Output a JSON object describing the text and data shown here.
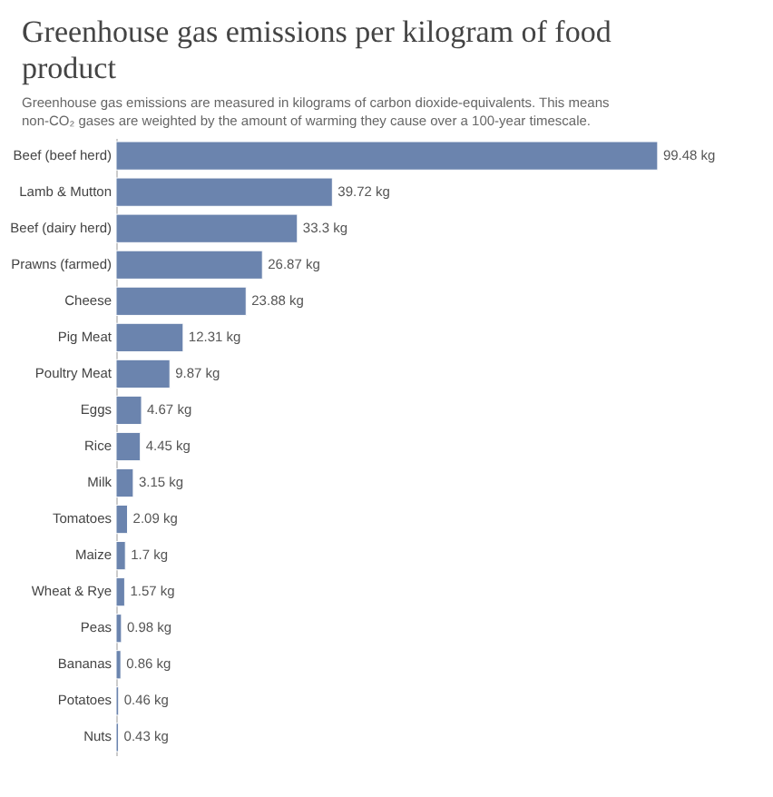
{
  "chart_data": {
    "type": "bar",
    "orientation": "horizontal",
    "title": "Greenhouse gas emissions per kilogram of food product",
    "subtitle": "Greenhouse gas emissions are measured in kilograms of carbon dioxide-equivalents. This means non-CO₂ gases are weighted by the amount of warming they cause over a 100-year timescale.",
    "categories": [
      "Beef (beef herd)",
      "Lamb & Mutton",
      "Beef (dairy herd)",
      "Prawns (farmed)",
      "Cheese",
      "Pig Meat",
      "Poultry Meat",
      "Eggs",
      "Rice",
      "Milk",
      "Tomatoes",
      "Maize",
      "Wheat & Rye",
      "Peas",
      "Bananas",
      "Potatoes",
      "Nuts"
    ],
    "values": [
      99.48,
      39.72,
      33.3,
      26.87,
      23.88,
      12.31,
      9.87,
      4.67,
      4.45,
      3.15,
      2.09,
      1.7,
      1.57,
      0.98,
      0.86,
      0.46,
      0.43
    ],
    "value_labels": [
      "99.48 kg",
      "39.72 kg",
      "33.3 kg",
      "26.87 kg",
      "23.88 kg",
      "12.31 kg",
      "9.87 kg",
      "4.67 kg",
      "4.45 kg",
      "3.15 kg",
      "2.09 kg",
      "1.7 kg",
      "1.57 kg",
      "0.98 kg",
      "0.86 kg",
      "0.46 kg",
      "0.43 kg"
    ],
    "color": "#6b84ae"
  }
}
